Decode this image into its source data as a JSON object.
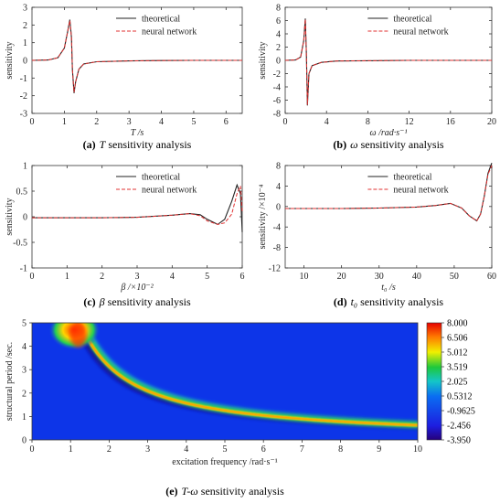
{
  "chart_data": [
    {
      "id": "a",
      "type": "line",
      "caption_letter": "(a)",
      "caption_sym": "T",
      "caption_rest": " sensitivity analysis",
      "xlabel": "T /s",
      "ylabel": "sensitivity",
      "xlim": [
        0,
        6.5
      ],
      "ylim": [
        -3,
        3
      ],
      "xticks": [
        0,
        1,
        2,
        3,
        4,
        5,
        6
      ],
      "yticks": [
        -3,
        -2,
        -1,
        0,
        1,
        2,
        3
      ],
      "legend": [
        "theoretical",
        "neural network"
      ],
      "series": [
        {
          "name": "theoretical",
          "color": "#222222",
          "x": [
            0,
            0.5,
            0.8,
            1.0,
            1.1,
            1.17,
            1.22,
            1.25,
            1.3,
            1.35,
            1.45,
            1.6,
            2,
            3,
            4,
            5,
            6,
            6.5
          ],
          "y": [
            0,
            0.02,
            0.15,
            0.7,
            1.6,
            2.3,
            1.3,
            -0.5,
            -1.85,
            -1.2,
            -0.5,
            -0.2,
            -0.08,
            -0.03,
            -0.01,
            0,
            0,
            0
          ]
        },
        {
          "name": "neural network",
          "color": "#e03030",
          "x": [
            0,
            0.5,
            0.8,
            1.0,
            1.1,
            1.17,
            1.22,
            1.25,
            1.3,
            1.35,
            1.45,
            1.6,
            2,
            3,
            4,
            5,
            6,
            6.5
          ],
          "y": [
            0,
            0.02,
            0.15,
            0.7,
            1.6,
            2.25,
            1.3,
            -0.5,
            -1.8,
            -1.2,
            -0.5,
            -0.2,
            -0.08,
            -0.03,
            -0.01,
            0,
            0,
            0
          ]
        }
      ]
    },
    {
      "id": "b",
      "type": "line",
      "caption_letter": "(b)",
      "caption_sym": "ω",
      "caption_rest": " sensitivity analysis",
      "xlabel": "ω /rad·s⁻¹",
      "ylabel": "sensitivity",
      "xlim": [
        0,
        20
      ],
      "ylim": [
        -8,
        8
      ],
      "xticks": [
        0,
        4,
        8,
        12,
        16,
        20
      ],
      "yticks": [
        -8,
        -6,
        -4,
        -2,
        0,
        2,
        4,
        6,
        8
      ],
      "legend": [
        "theoretical",
        "neural network"
      ],
      "series": [
        {
          "name": "theoretical",
          "color": "#222222",
          "x": [
            0,
            1,
            1.5,
            1.8,
            1.95,
            2.05,
            2.15,
            2.3,
            2.6,
            3.5,
            5,
            8,
            12,
            16,
            20
          ],
          "y": [
            0,
            0.05,
            0.5,
            3,
            6.3,
            1,
            -6.8,
            -2,
            -0.8,
            -0.3,
            -0.1,
            -0.05,
            0,
            0,
            0
          ]
        },
        {
          "name": "neural network",
          "color": "#e03030",
          "x": [
            0,
            1,
            1.5,
            1.8,
            1.95,
            2.05,
            2.15,
            2.3,
            2.6,
            3.5,
            5,
            8,
            12,
            16,
            20
          ],
          "y": [
            0,
            0.05,
            0.5,
            3,
            6.2,
            1,
            -6.7,
            -2,
            -0.8,
            -0.3,
            -0.1,
            -0.05,
            0,
            0,
            0
          ]
        }
      ]
    },
    {
      "id": "c",
      "type": "line",
      "caption_letter": "(c)",
      "caption_sym": "β",
      "caption_rest": " sensitivity analysis",
      "xlabel": "β /×10⁻²",
      "ylabel": "sensitivity",
      "xlim": [
        0,
        6
      ],
      "ylim": [
        -1,
        1
      ],
      "xticks": [
        0,
        1,
        2,
        3,
        4,
        5,
        6
      ],
      "yticks": [
        -1,
        -0.5,
        0,
        0.5,
        1
      ],
      "legend": [
        "theoretical",
        "neural network"
      ],
      "series": [
        {
          "name": "theoretical",
          "color": "#222222",
          "x": [
            0,
            1,
            2,
            3,
            4,
            4.5,
            4.8,
            5.0,
            5.3,
            5.5,
            5.7,
            5.85,
            5.95,
            6.0
          ],
          "y": [
            -0.02,
            -0.02,
            -0.02,
            -0.01,
            0.03,
            0.06,
            0.04,
            -0.05,
            -0.15,
            -0.05,
            0.3,
            0.62,
            0.45,
            -0.3
          ]
        },
        {
          "name": "neural network",
          "color": "#e03030",
          "x": [
            0,
            1,
            2,
            3,
            4,
            4.5,
            4.8,
            5.0,
            5.3,
            5.5,
            5.7,
            5.85,
            5.95,
            6.0
          ],
          "y": [
            -0.02,
            -0.02,
            -0.02,
            -0.01,
            0.03,
            0.06,
            0.02,
            -0.08,
            -0.15,
            -0.12,
            0.05,
            0.45,
            0.6,
            0.1
          ]
        }
      ]
    },
    {
      "id": "d",
      "type": "line",
      "caption_letter": "(d)",
      "caption_sym": "t₀",
      "caption_rest": " sensitivity analysis",
      "xlabel": "t₀ /s",
      "ylabel": "sensitivity /×10⁻⁴",
      "xlim": [
        5,
        60
      ],
      "ylim": [
        -12,
        8
      ],
      "xticks": [
        10,
        20,
        30,
        40,
        50,
        60
      ],
      "yticks": [
        -12,
        -8,
        -4,
        0,
        4,
        8
      ],
      "legend": [
        "theoretical",
        "neural network"
      ],
      "series": [
        {
          "name": "theoretical",
          "color": "#222222",
          "x": [
            5,
            10,
            20,
            30,
            40,
            45,
            49,
            52,
            54,
            56,
            57,
            58,
            59,
            60
          ],
          "y": [
            -0.4,
            -0.4,
            -0.4,
            -0.3,
            -0.1,
            0.2,
            0.6,
            -0.3,
            -1.8,
            -2.8,
            -1.5,
            2,
            6.5,
            8.5
          ]
        },
        {
          "name": "neural network",
          "color": "#e03030",
          "x": [
            5,
            10,
            20,
            30,
            40,
            45,
            49,
            52,
            54,
            56,
            57,
            58,
            59,
            60
          ],
          "y": [
            -0.4,
            -0.4,
            -0.4,
            -0.3,
            -0.1,
            0.2,
            0.6,
            -0.3,
            -1.8,
            -2.8,
            -1.5,
            2,
            6.3,
            8
          ]
        }
      ]
    },
    {
      "id": "e",
      "type": "heatmap",
      "caption_letter": "(e)",
      "caption_sym": "T-ω",
      "caption_rest": " sensitivity analysis",
      "xlabel": "excitation frequency /rad·s⁻¹",
      "ylabel": "structural period /sec.",
      "xlim": [
        0,
        10
      ],
      "ylim": [
        0,
        5
      ],
      "xticks": [
        0,
        1,
        2,
        3,
        4,
        5,
        6,
        7,
        8,
        9,
        10
      ],
      "yticks": [
        0,
        1,
        2,
        3,
        4,
        5
      ],
      "ridge": "T = 2π/ω",
      "colorbar_labels": [
        "8.000",
        "6.506",
        "5.012",
        "3.519",
        "2.025",
        "0.5312",
        "-0.9625",
        "-2.456",
        "-3.950"
      ],
      "colorbar_range": [
        -3.95,
        8.0
      ]
    }
  ]
}
